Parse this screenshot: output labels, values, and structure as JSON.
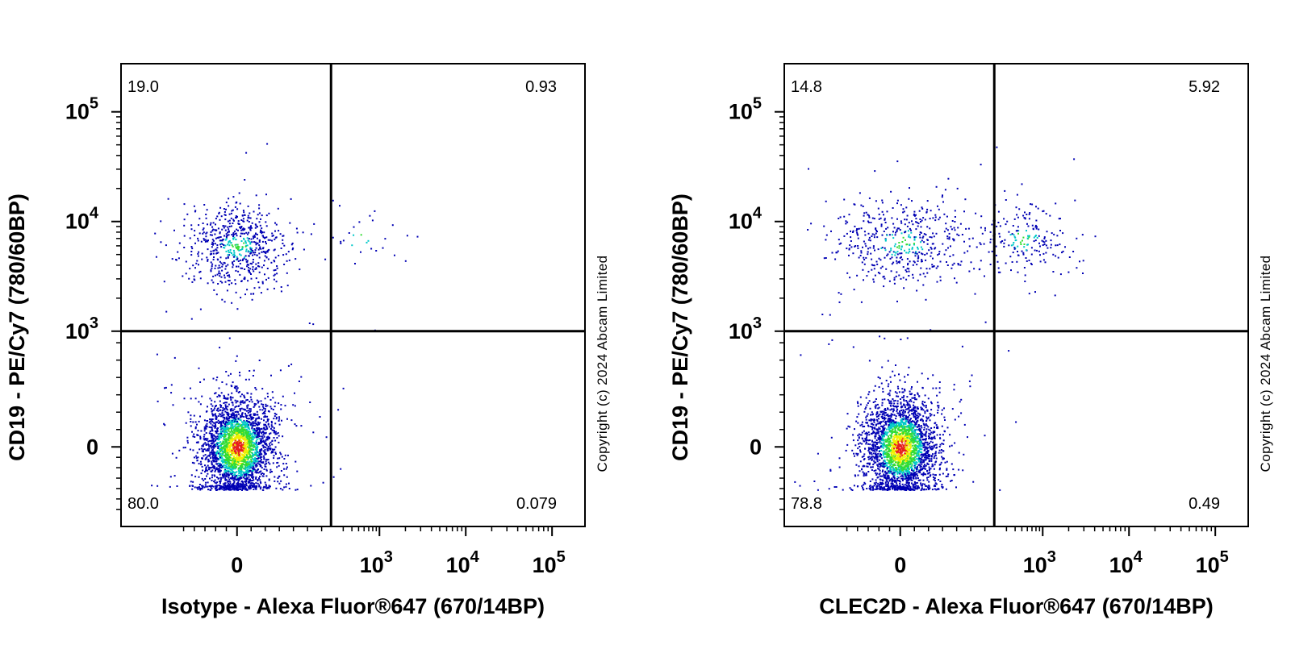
{
  "chart_data": [
    {
      "type": "scatter",
      "subtype": "flow-cytometry-density-dot-plot",
      "xlabel": "Isotype - Alexa Fluor®647 (670/14BP)",
      "ylabel": "CD19 - PE/Cy7 (780/60BP)",
      "copyright": "Copyright (c) 2024 Abcam Limited",
      "x_scale": "biexponential",
      "y_scale": "biexponential",
      "x_ticks": [
        {
          "value": 0,
          "base": "0",
          "exp": ""
        },
        {
          "value": 1000,
          "base": "10",
          "exp": "3"
        },
        {
          "value": 10000,
          "base": "10",
          "exp": "4"
        },
        {
          "value": 100000,
          "base": "10",
          "exp": "5"
        }
      ],
      "y_ticks": [
        {
          "value": 0,
          "base": "0",
          "exp": ""
        },
        {
          "value": 1000,
          "base": "10",
          "exp": "3"
        },
        {
          "value": 10000,
          "base": "10",
          "exp": "4"
        },
        {
          "value": 100000,
          "base": "10",
          "exp": "5"
        }
      ],
      "quadrant_gate": {
        "x": 200,
        "y": 1000
      },
      "quadrants": {
        "upper_left": "19.0",
        "upper_right": "0.93",
        "lower_left": "80.0",
        "lower_right": "0.079"
      },
      "populations": [
        {
          "name": "CD19- cluster",
          "x_center": 0,
          "y_center": 0,
          "share": 0.8
        },
        {
          "name": "CD19+ cluster",
          "x_center": 0,
          "y_center": 6000,
          "share": 0.19
        },
        {
          "name": "CD19+ Alexa647+ events",
          "x_center": 500,
          "y_center": 7000,
          "share": 0.0093
        }
      ]
    },
    {
      "type": "scatter",
      "subtype": "flow-cytometry-density-dot-plot",
      "xlabel": "CLEC2D - Alexa Fluor®647 (670/14BP)",
      "ylabel": "CD19 - PE/Cy7 (780/60BP)",
      "copyright": "Copyright (c) 2024 Abcam Limited",
      "x_scale": "biexponential",
      "y_scale": "biexponential",
      "x_ticks": [
        {
          "value": 0,
          "base": "0",
          "exp": ""
        },
        {
          "value": 1000,
          "base": "10",
          "exp": "3"
        },
        {
          "value": 10000,
          "base": "10",
          "exp": "4"
        },
        {
          "value": 100000,
          "base": "10",
          "exp": "5"
        }
      ],
      "y_ticks": [
        {
          "value": 0,
          "base": "0",
          "exp": ""
        },
        {
          "value": 1000,
          "base": "10",
          "exp": "3"
        },
        {
          "value": 10000,
          "base": "10",
          "exp": "4"
        },
        {
          "value": 100000,
          "base": "10",
          "exp": "5"
        }
      ],
      "quadrant_gate": {
        "x": 200,
        "y": 1000
      },
      "quadrants": {
        "upper_left": "14.8",
        "upper_right": "5.92",
        "lower_left": "78.8",
        "lower_right": "0.49"
      },
      "populations": [
        {
          "name": "CD19- cluster",
          "x_center": 0,
          "y_center": 0,
          "share": 0.79
        },
        {
          "name": "CD19+ cluster",
          "x_center": 0,
          "y_center": 6500,
          "share": 0.15
        },
        {
          "name": "CD19+ CLEC2D+ cluster",
          "x_center": 500,
          "y_center": 7000,
          "share": 0.06
        }
      ]
    }
  ],
  "colors": {
    "axis": "#000000",
    "density_low": "#0000b4",
    "density_mid": "#00c8c8",
    "density_mid2": "#32dc32",
    "density_high_yellow": "#f0f000",
    "density_high": "#e61e1e"
  }
}
